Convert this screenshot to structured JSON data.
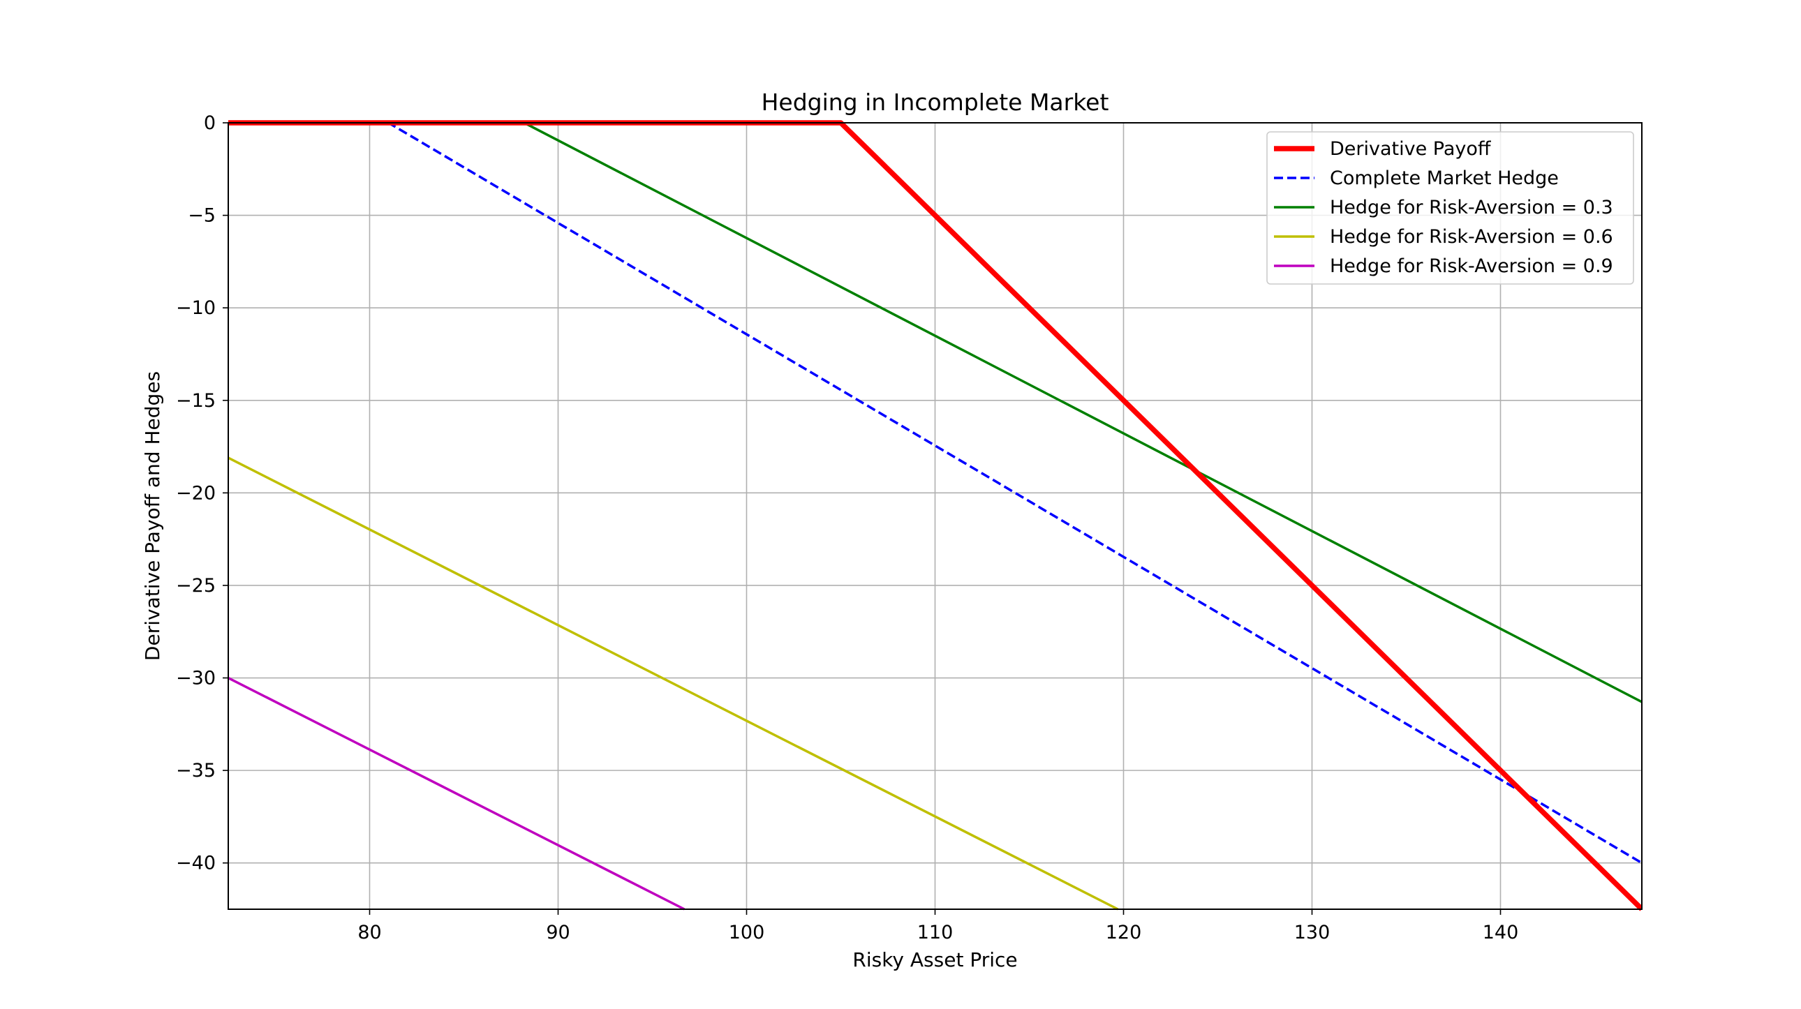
{
  "chart_data": {
    "type": "line",
    "title": "Hedging in Incomplete Market",
    "xlabel": "Risky Asset Price",
    "ylabel": "Derivative Payoff and Hedges",
    "xlim": [
      72.5,
      147.5
    ],
    "ylim": [
      -42.5,
      0
    ],
    "xticks": [
      80,
      90,
      100,
      110,
      120,
      130,
      140
    ],
    "yticks": [
      0,
      -5,
      -10,
      -15,
      -20,
      -25,
      -30,
      -35,
      -40
    ],
    "grid": true,
    "legend_position": "top-right",
    "series": [
      {
        "name": "Derivative Payoff",
        "color": "#ff0000",
        "style": "solid-thick",
        "x": [
          72.5,
          105,
          147.5
        ],
        "y": [
          0,
          0,
          -42.5
        ]
      },
      {
        "name": "Complete Market Hedge",
        "color": "#0000ff",
        "style": "dashed",
        "x": [
          72.5,
          81,
          147.5
        ],
        "y": [
          0,
          0,
          -40
        ]
      },
      {
        "name": "Hedge for Risk-Aversion = 0.3",
        "color": "#008000",
        "style": "solid",
        "x": [
          72.5,
          88.2,
          147.5
        ],
        "y": [
          0,
          0,
          -31.3
        ]
      },
      {
        "name": "Hedge for Risk-Aversion = 0.6",
        "color": "#bfbf00",
        "style": "solid",
        "x": [
          72.5,
          119.7
        ],
        "y": [
          -18.1,
          -42.5
        ]
      },
      {
        "name": "Hedge for Risk-Aversion = 0.9",
        "color": "#bf00bf",
        "style": "solid",
        "x": [
          72.5,
          96.7
        ],
        "y": [
          -30,
          -42.5
        ]
      }
    ]
  }
}
